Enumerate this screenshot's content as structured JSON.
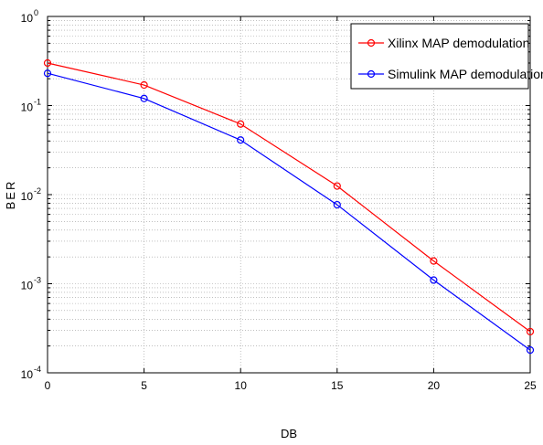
{
  "chart_data": {
    "type": "line",
    "xlabel": "DB",
    "ylabel": "BER",
    "x": [
      0,
      5,
      10,
      15,
      20,
      25
    ],
    "xlim": [
      0,
      25
    ],
    "ylim": [
      0.0001,
      1
    ],
    "yscale": "log",
    "grid": true,
    "legend_position": "top-right",
    "x_ticks": [
      "0",
      "5",
      "10",
      "15",
      "20",
      "25"
    ],
    "y_ticks": [
      {
        "base": "10",
        "exp": "-4",
        "value": 0.0001
      },
      {
        "base": "10",
        "exp": "-3",
        "value": 0.001
      },
      {
        "base": "10",
        "exp": "-2",
        "value": 0.01
      },
      {
        "base": "10",
        "exp": "-1",
        "value": 0.1
      },
      {
        "base": "10",
        "exp": "0",
        "value": 1
      }
    ],
    "series": [
      {
        "name": "Xilinx MAP demodulation",
        "color": "#ff0000",
        "values": [
          0.3,
          0.17,
          0.062,
          0.0125,
          0.0018,
          0.00029
        ]
      },
      {
        "name": "Simulink MAP demodulation",
        "color": "#0000ff",
        "values": [
          0.23,
          0.12,
          0.041,
          0.0077,
          0.0011,
          0.00018
        ]
      }
    ]
  }
}
